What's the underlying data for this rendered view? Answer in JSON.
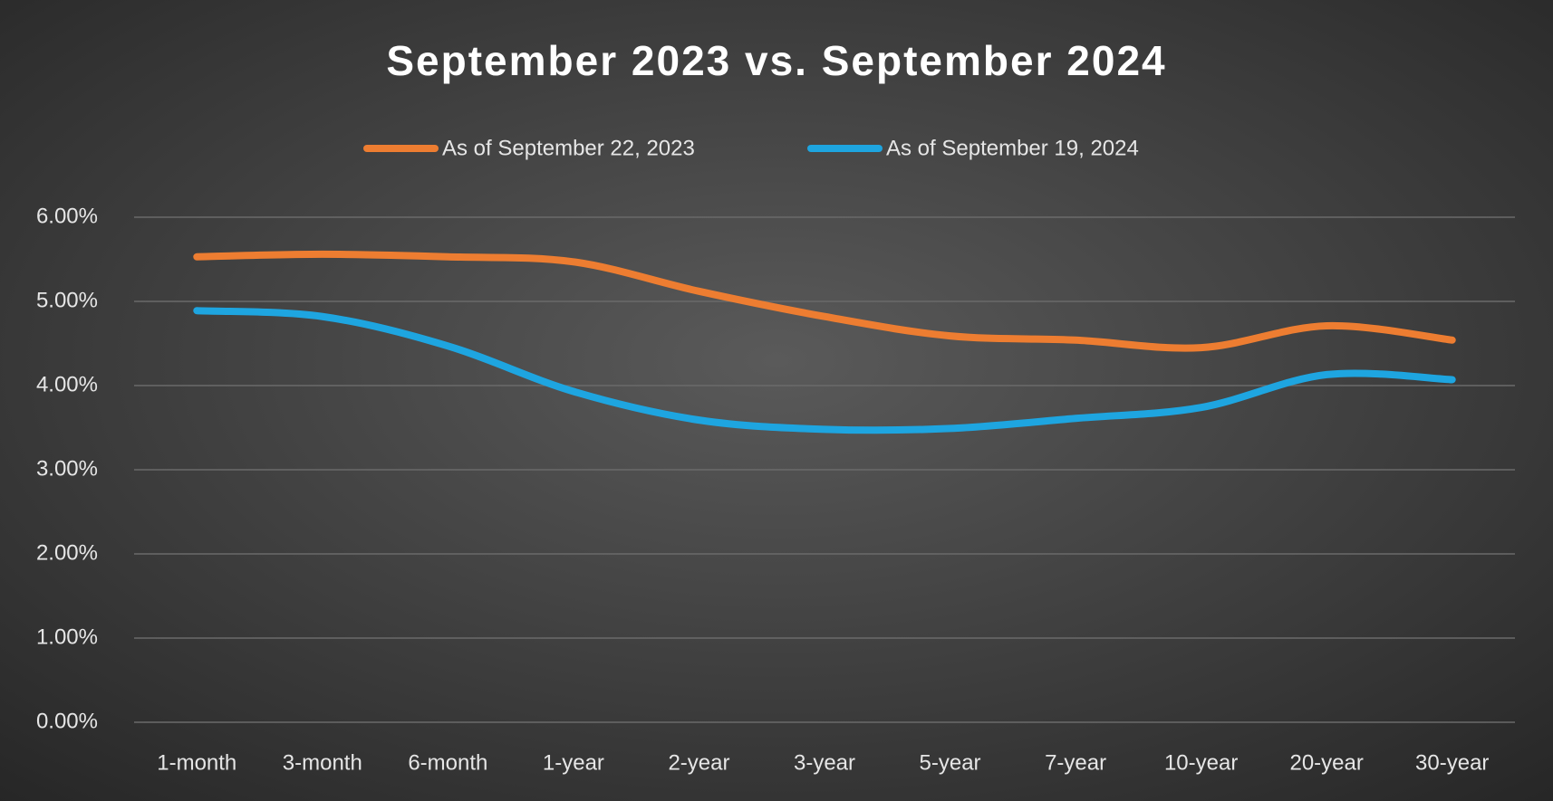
{
  "chart_data": {
    "type": "line",
    "title": "September 2023 vs. September 2024",
    "categories": [
      "1-month",
      "3-month",
      "6-month",
      "1-year",
      "2-year",
      "3-year",
      "5-year",
      "7-year",
      "10-year",
      "20-year",
      "30-year"
    ],
    "series": [
      {
        "name": "As of September 22, 2023",
        "color": "#ed7d31",
        "values": [
          5.53,
          5.56,
          5.53,
          5.47,
          5.12,
          4.82,
          4.59,
          4.54,
          4.45,
          4.71,
          4.54
        ]
      },
      {
        "name": "As of September 19, 2024",
        "color": "#1ea5e0",
        "values": [
          4.89,
          4.82,
          4.47,
          3.93,
          3.59,
          3.48,
          3.49,
          3.61,
          3.74,
          4.13,
          4.07
        ]
      }
    ],
    "ylim": [
      0,
      6
    ],
    "yticks": [
      {
        "value": 0,
        "label": "0.00%"
      },
      {
        "value": 1,
        "label": "1.00%"
      },
      {
        "value": 2,
        "label": "2.00%"
      },
      {
        "value": 3,
        "label": "3.00%"
      },
      {
        "value": 4,
        "label": "4.00%"
      },
      {
        "value": 5,
        "label": "5.00%"
      },
      {
        "value": 6,
        "label": "6.00%"
      }
    ],
    "grid": true,
    "legend": "top"
  }
}
